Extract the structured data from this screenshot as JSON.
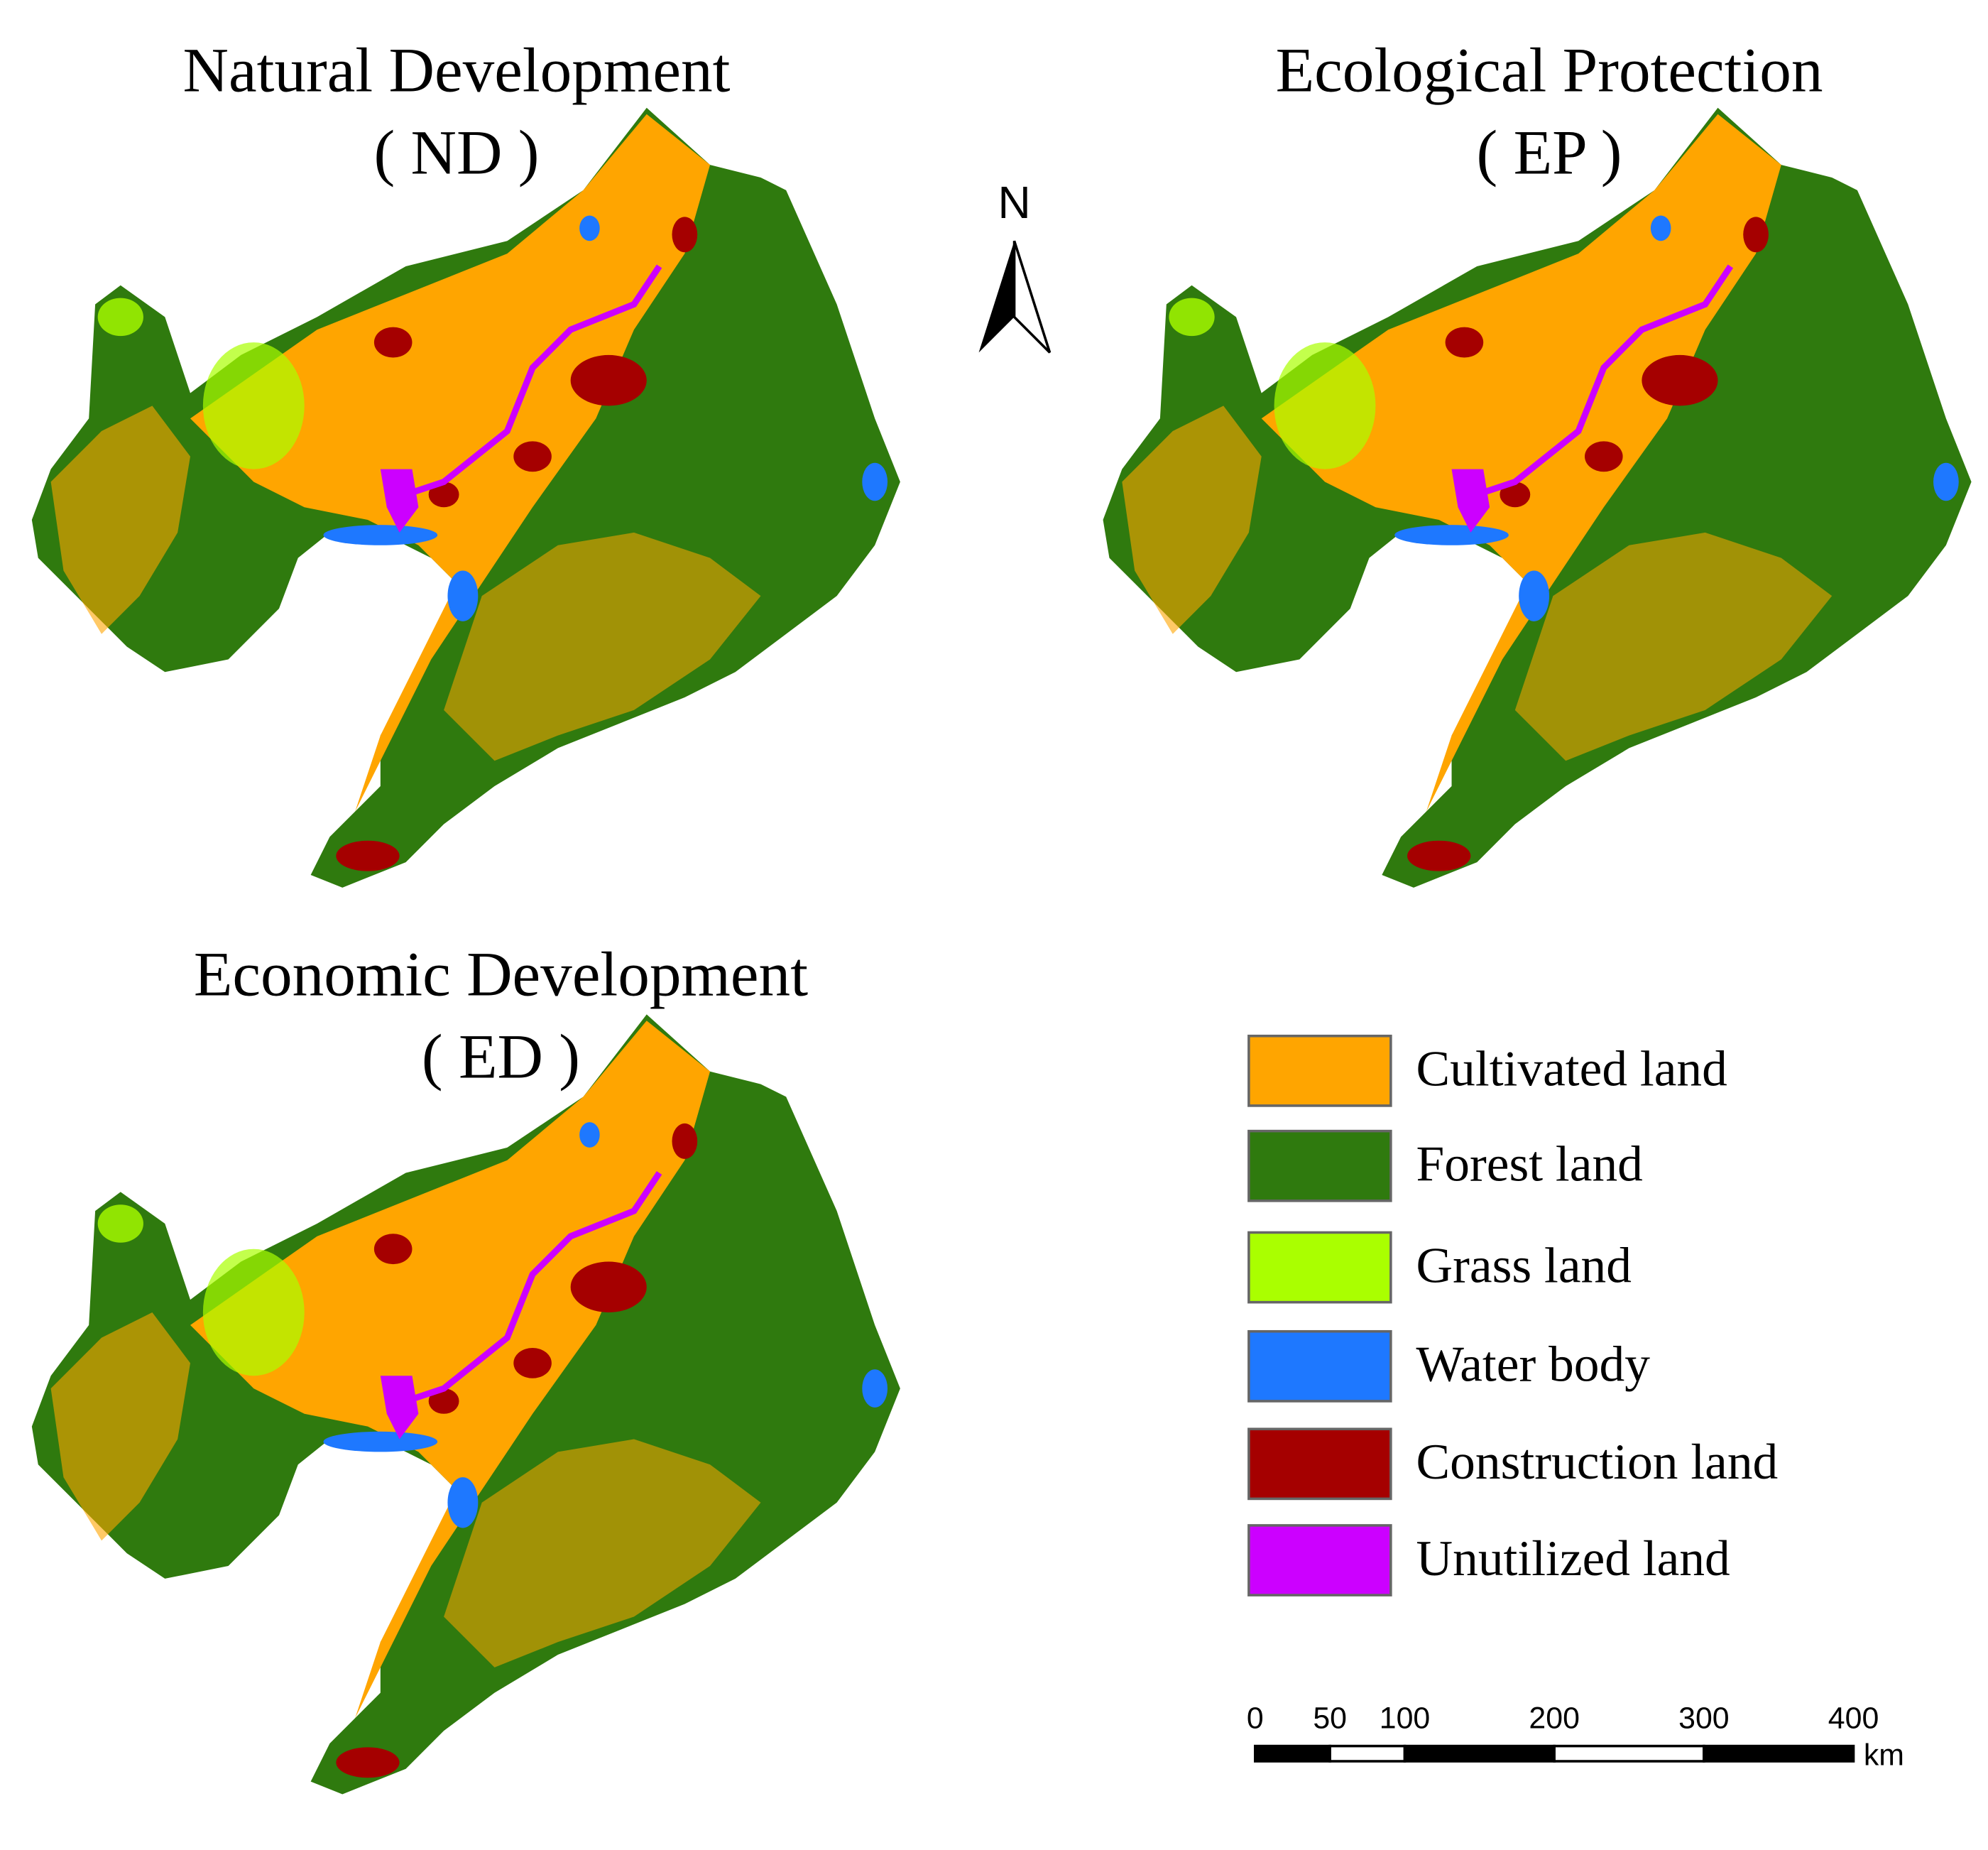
{
  "panels": [
    {
      "title": "Natural Development",
      "code": "( ND )"
    },
    {
      "title": "Ecological Protection",
      "code": "( EP )"
    },
    {
      "title": "Economic Development",
      "code": "( ED )"
    }
  ],
  "north": "N",
  "legend": [
    {
      "label": "Cultivated land",
      "color": "#ffa500"
    },
    {
      "label": "Forest land",
      "color": "#2f7a0e"
    },
    {
      "label": "Grass land",
      "color": "#aaff00"
    },
    {
      "label": "Water body",
      "color": "#1e78ff"
    },
    {
      "label": "Construction land",
      "color": "#a50000"
    },
    {
      "label": "Unutilized land",
      "color": "#cc00ff"
    }
  ],
  "scale_bar": {
    "ticks": [
      0,
      50,
      100,
      200,
      300,
      400
    ],
    "unit": "km"
  }
}
